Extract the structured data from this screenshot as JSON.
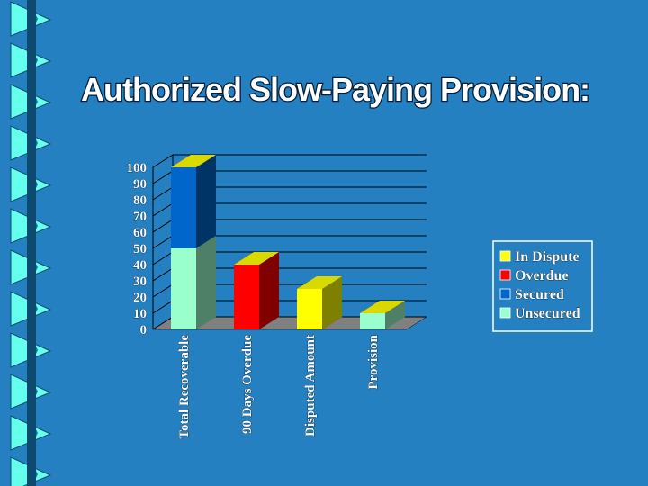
{
  "chart_data": {
    "type": "bar3d",
    "title": "Authorized Slow-Paying Provision:",
    "categories": [
      "Total Recoverable",
      "90 Days Overdue",
      "Disputed Amount",
      "Provision"
    ],
    "series": [
      {
        "name": "In Dispute",
        "color": "#ffff00",
        "values": [
          0,
          0,
          25,
          0
        ]
      },
      {
        "name": "Overdue",
        "color": "#ff0000",
        "values": [
          0,
          40,
          0,
          0
        ]
      },
      {
        "name": "Secured",
        "color": "#0066cc",
        "values": [
          50,
          0,
          0,
          0
        ]
      },
      {
        "name": "Unsecured",
        "color": "#99ffcc",
        "values": [
          50,
          0,
          0,
          10
        ]
      }
    ],
    "stacked": true,
    "ylim": [
      0,
      100
    ],
    "yticks": [
      0,
      10,
      20,
      30,
      40,
      50,
      60,
      70,
      80,
      90,
      100
    ],
    "grid": true,
    "legend": "right"
  }
}
